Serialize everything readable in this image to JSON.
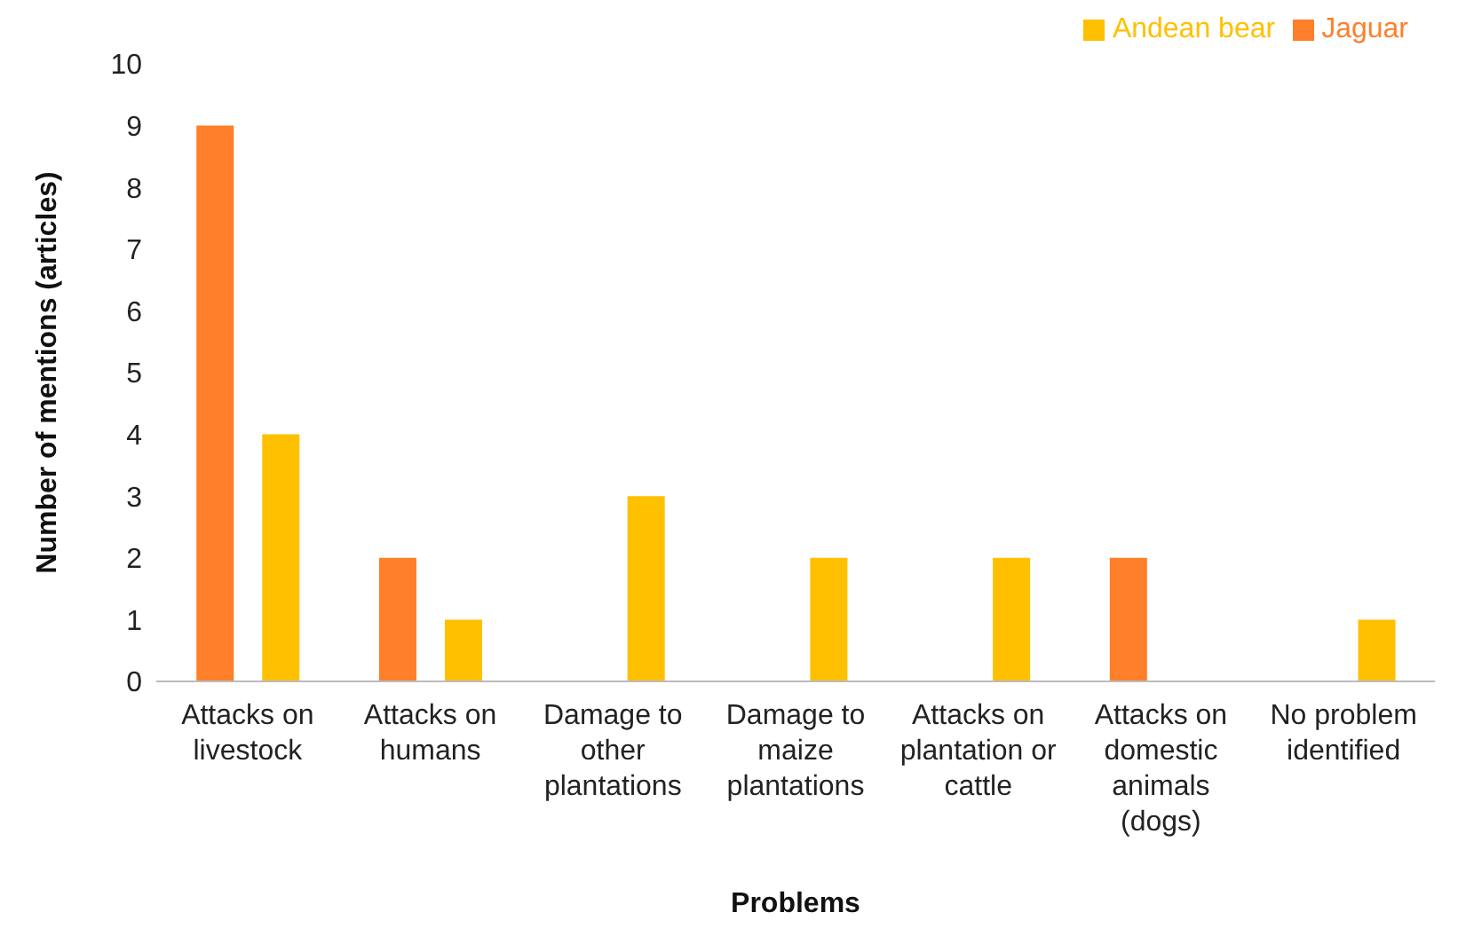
{
  "chart_data": {
    "type": "bar",
    "xlabel": "Problems",
    "ylabel": "Number of mentions (articles)",
    "categories": [
      "Attacks on livestock",
      "Attacks on humans",
      "Damage to other plantations",
      "Damage to maize plantations",
      "Attacks on plantation or cattle",
      "Attacks on domestic animals (dogs)",
      "No problem identified"
    ],
    "series": [
      {
        "name": "Jaguar",
        "color": "#ff7f2a",
        "values": [
          9,
          2,
          0,
          0,
          0,
          2,
          0
        ]
      },
      {
        "name": "Andean bear",
        "color": "#ffc000",
        "values": [
          4,
          1,
          3,
          2,
          2,
          0,
          1
        ]
      }
    ],
    "ylim": [
      0,
      10
    ],
    "yticks": [
      0,
      1,
      2,
      3,
      4,
      5,
      6,
      7,
      8,
      9,
      10
    ],
    "grid": false,
    "legend": "top right"
  }
}
